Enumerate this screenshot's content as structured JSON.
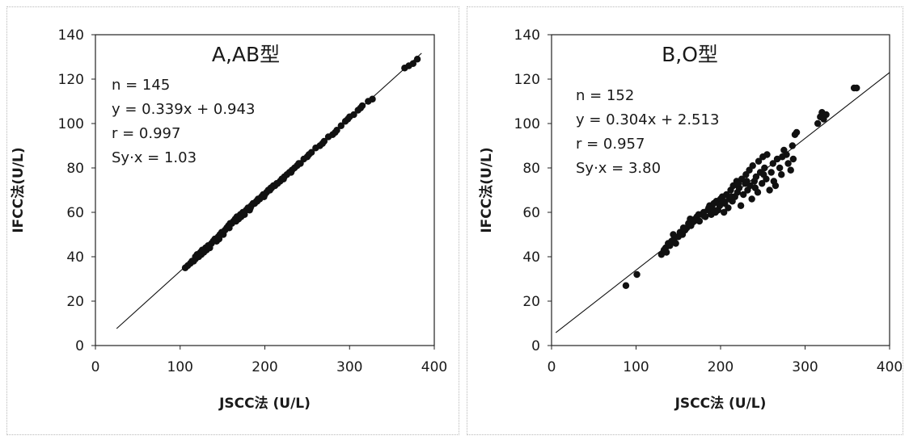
{
  "chart_data": [
    {
      "type": "scatter",
      "title": "A,AB型",
      "xlabel": "JSCC法 (U/L)",
      "ylabel": "IFCC法(U/L)",
      "xlim": [
        0,
        400
      ],
      "ylim": [
        0,
        140
      ],
      "xticks": [
        "0",
        "100",
        "200",
        "300",
        "400"
      ],
      "yticks": [
        "0",
        "20",
        "40",
        "60",
        "80",
        "100",
        "120",
        "140"
      ],
      "grid": false,
      "stats": [
        "n = 145",
        "y = 0.339x + 0.943",
        "r = 0.997",
        "Sy·x = 1.03"
      ],
      "regression": {
        "slope": 0.339,
        "intercept": 0.943,
        "x_range": [
          25,
          385
        ]
      },
      "points": [
        [
          106,
          35
        ],
        [
          109,
          36
        ],
        [
          112,
          37
        ],
        [
          114,
          38
        ],
        [
          116,
          38
        ],
        [
          118,
          39
        ],
        [
          120,
          41
        ],
        [
          122,
          40
        ],
        [
          124,
          42
        ],
        [
          125,
          41
        ],
        [
          127,
          43
        ],
        [
          128,
          42
        ],
        [
          130,
          44
        ],
        [
          131,
          43
        ],
        [
          133,
          45
        ],
        [
          135,
          44
        ],
        [
          137,
          46
        ],
        [
          139,
          47
        ],
        [
          141,
          48
        ],
        [
          143,
          47
        ],
        [
          145,
          49
        ],
        [
          147,
          50
        ],
        [
          149,
          51
        ],
        [
          151,
          50
        ],
        [
          153,
          52
        ],
        [
          155,
          53
        ],
        [
          157,
          54
        ],
        [
          159,
          55
        ],
        [
          161,
          55
        ],
        [
          163,
          56
        ],
        [
          165,
          57
        ],
        [
          167,
          58
        ],
        [
          169,
          57
        ],
        [
          171,
          59
        ],
        [
          172,
          58
        ],
        [
          174,
          60
        ],
        [
          176,
          59
        ],
        [
          178,
          61
        ],
        [
          180,
          62
        ],
        [
          182,
          61
        ],
        [
          184,
          63
        ],
        [
          186,
          64
        ],
        [
          188,
          64
        ],
        [
          190,
          65
        ],
        [
          192,
          66
        ],
        [
          194,
          66
        ],
        [
          196,
          67
        ],
        [
          198,
          68
        ],
        [
          200,
          68
        ],
        [
          202,
          69
        ],
        [
          204,
          70
        ],
        [
          206,
          70
        ],
        [
          208,
          71
        ],
        [
          210,
          72
        ],
        [
          212,
          72
        ],
        [
          215,
          73
        ],
        [
          218,
          74
        ],
        [
          220,
          75
        ],
        [
          223,
          76
        ],
        [
          226,
          77
        ],
        [
          229,
          78
        ],
        [
          232,
          79
        ],
        [
          235,
          80
        ],
        [
          238,
          81
        ],
        [
          242,
          82
        ],
        [
          246,
          84
        ],
        [
          250,
          85
        ],
        [
          255,
          87
        ],
        [
          260,
          89
        ],
        [
          265,
          90
        ],
        [
          270,
          92
        ],
        [
          275,
          94
        ],
        [
          280,
          95
        ],
        [
          285,
          97
        ],
        [
          290,
          99
        ],
        [
          295,
          101
        ],
        [
          300,
          103
        ],
        [
          305,
          104
        ],
        [
          310,
          106
        ],
        [
          315,
          108
        ],
        [
          322,
          110
        ],
        [
          327,
          111
        ],
        [
          365,
          125
        ],
        [
          370,
          126
        ],
        [
          375,
          127
        ],
        [
          380,
          129
        ],
        [
          118,
          40
        ],
        [
          126,
          43
        ],
        [
          134,
          44
        ],
        [
          146,
          48
        ],
        [
          158,
          53
        ],
        [
          166,
          56
        ],
        [
          175,
          60
        ],
        [
          183,
          62
        ],
        [
          191,
          65
        ],
        [
          199,
          67
        ],
        [
          207,
          71
        ],
        [
          214,
          73
        ],
        [
          222,
          75
        ],
        [
          231,
          78
        ],
        [
          240,
          82
        ],
        [
          252,
          86
        ],
        [
          268,
          91
        ],
        [
          283,
          96
        ],
        [
          298,
          102
        ],
        [
          313,
          107
        ]
      ]
    },
    {
      "type": "scatter",
      "title": "B,O型",
      "xlabel": "JSCC法 (U/L)",
      "ylabel": "IFCC法(U/L)",
      "xlim": [
        0,
        400
      ],
      "ylim": [
        0,
        140
      ],
      "xticks": [
        "0",
        "100",
        "200",
        "300",
        "400"
      ],
      "yticks": [
        "0",
        "20",
        "40",
        "60",
        "80",
        "100",
        "120",
        "140"
      ],
      "grid": false,
      "stats": [
        "n = 152",
        "y = 0.304x + 2.513",
        "r = 0.957",
        "Sy·x = 3.80"
      ],
      "regression": {
        "slope": 0.304,
        "intercept": 2.513,
        "x_range": [
          5,
          400
        ]
      },
      "points": [
        [
          88,
          27
        ],
        [
          101,
          32
        ],
        [
          130,
          41
        ],
        [
          133,
          43
        ],
        [
          135,
          44
        ],
        [
          138,
          46
        ],
        [
          140,
          45
        ],
        [
          142,
          47
        ],
        [
          145,
          48
        ],
        [
          147,
          46
        ],
        [
          150,
          49
        ],
        [
          152,
          51
        ],
        [
          155,
          50
        ],
        [
          158,
          52
        ],
        [
          160,
          53
        ],
        [
          162,
          55
        ],
        [
          165,
          54
        ],
        [
          168,
          56
        ],
        [
          170,
          57
        ],
        [
          172,
          58
        ],
        [
          175,
          56
        ],
        [
          178,
          59
        ],
        [
          180,
          60
        ],
        [
          182,
          58
        ],
        [
          185,
          61
        ],
        [
          187,
          63
        ],
        [
          189,
          59
        ],
        [
          190,
          62
        ],
        [
          192,
          64
        ],
        [
          195,
          65
        ],
        [
          197,
          61
        ],
        [
          199,
          63
        ],
        [
          200,
          66
        ],
        [
          202,
          67
        ],
        [
          204,
          60
        ],
        [
          205,
          64
        ],
        [
          207,
          68
        ],
        [
          209,
          62
        ],
        [
          210,
          66
        ],
        [
          212,
          70
        ],
        [
          214,
          65
        ],
        [
          215,
          72
        ],
        [
          217,
          67
        ],
        [
          219,
          74
        ],
        [
          220,
          69
        ],
        [
          222,
          71
        ],
        [
          224,
          63
        ],
        [
          225,
          75
        ],
        [
          227,
          68
        ],
        [
          229,
          73
        ],
        [
          230,
          77
        ],
        [
          232,
          70
        ],
        [
          234,
          79
        ],
        [
          235,
          72
        ],
        [
          237,
          66
        ],
        [
          238,
          81
        ],
        [
          240,
          74
        ],
        [
          242,
          76
        ],
        [
          244,
          69
        ],
        [
          245,
          83
        ],
        [
          247,
          78
        ],
        [
          249,
          73
        ],
        [
          250,
          85
        ],
        [
          252,
          80
        ],
        [
          254,
          75
        ],
        [
          255,
          86
        ],
        [
          258,
          70
        ],
        [
          260,
          78
        ],
        [
          262,
          82
        ],
        [
          265,
          72
        ],
        [
          267,
          84
        ],
        [
          270,
          80
        ],
        [
          272,
          77
        ],
        [
          275,
          88
        ],
        [
          278,
          86
        ],
        [
          280,
          82
        ],
        [
          283,
          79
        ],
        [
          285,
          90
        ],
        [
          288,
          95
        ],
        [
          290,
          96
        ],
        [
          315,
          100
        ],
        [
          318,
          103
        ],
        [
          320,
          105
        ],
        [
          322,
          102
        ],
        [
          325,
          104
        ],
        [
          358,
          116
        ],
        [
          361,
          116
        ],
        [
          136,
          42
        ],
        [
          144,
          50
        ],
        [
          156,
          53
        ],
        [
          164,
          57
        ],
        [
          174,
          59
        ],
        [
          186,
          62
        ],
        [
          194,
          60
        ],
        [
          203,
          65
        ],
        [
          213,
          67
        ],
        [
          221,
          73
        ],
        [
          231,
          74
        ],
        [
          241,
          71
        ],
        [
          251,
          77
        ],
        [
          263,
          74
        ],
        [
          273,
          85
        ],
        [
          286,
          84
        ]
      ]
    }
  ]
}
